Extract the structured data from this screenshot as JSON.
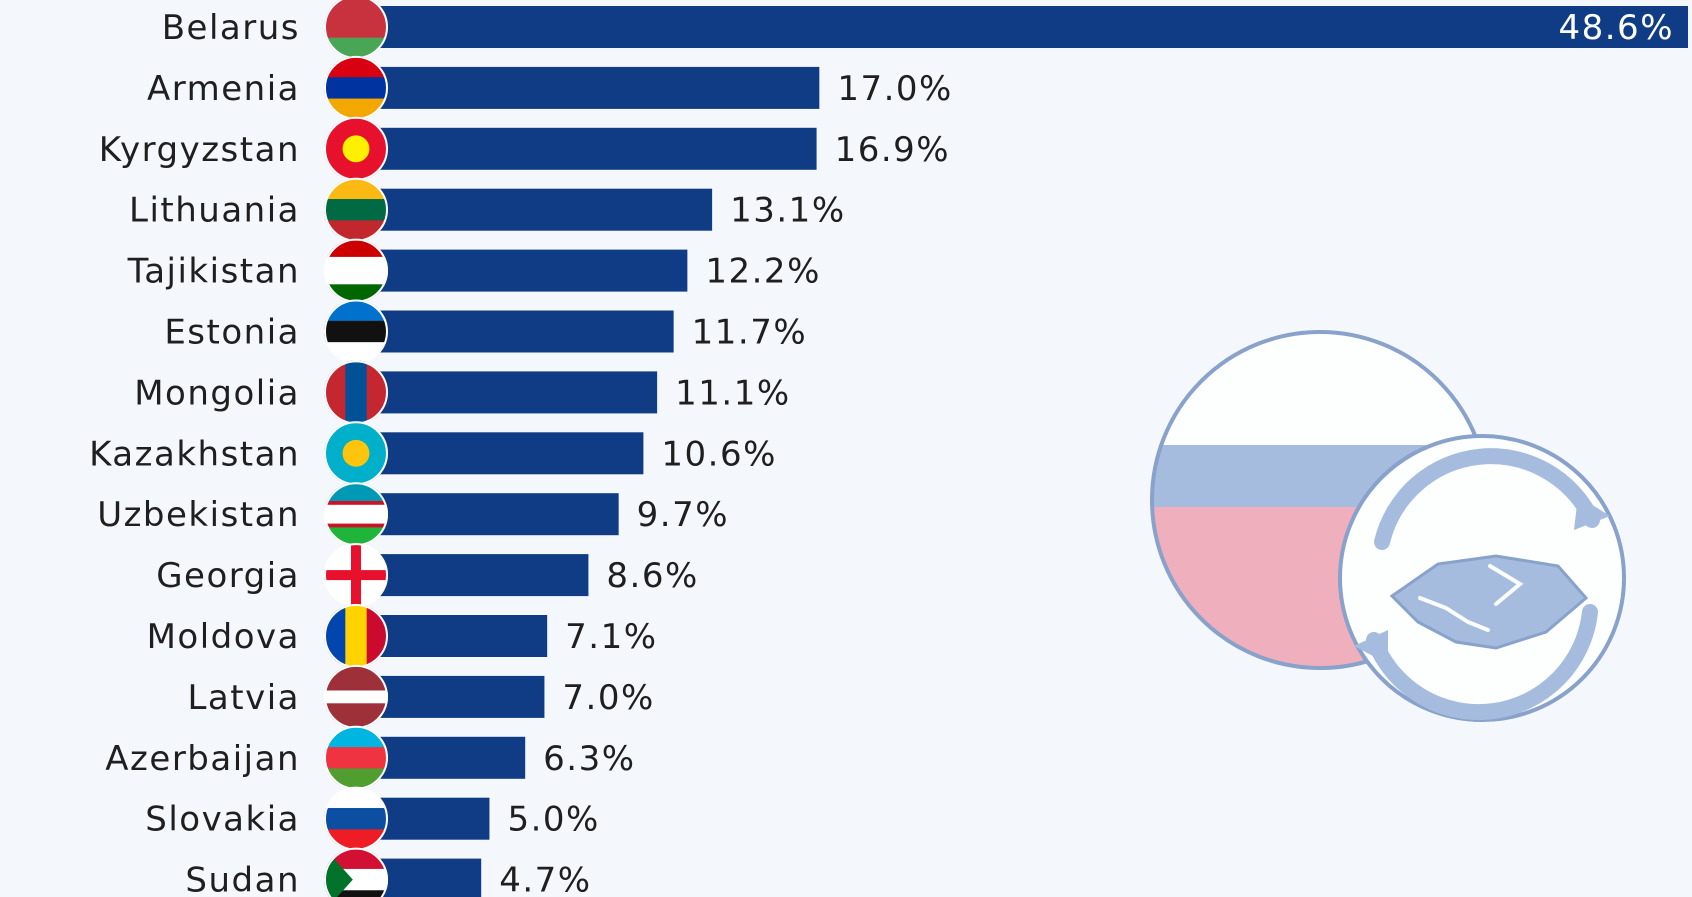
{
  "chart_data": {
    "type": "bar",
    "orientation": "horizontal",
    "categories": [
      "Belarus",
      "Armenia",
      "Kyrgyzstan",
      "Lithuania",
      "Tajikistan",
      "Estonia",
      "Mongolia",
      "Kazakhstan",
      "Uzbekistan",
      "Georgia",
      "Moldova",
      "Latvia",
      "Azerbaijan",
      "Slovakia",
      "Sudan"
    ],
    "values": [
      48.6,
      17.0,
      16.9,
      13.1,
      12.2,
      11.7,
      11.1,
      10.6,
      9.7,
      8.6,
      7.1,
      7.0,
      6.3,
      5.0,
      4.7
    ],
    "value_labels": [
      "48.6%",
      "17.0%",
      "16.9%",
      "13.1%",
      "12.2%",
      "11.7%",
      "11.1%",
      "10.6%",
      "9.7%",
      "8.6%",
      "7.1%",
      "7.0%",
      "6.3%",
      "5.0%",
      "4.7%"
    ],
    "xlim": [
      0,
      48.6
    ],
    "bar_color": "#0f3c85",
    "grid": false,
    "legend": "none",
    "flag_icons": [
      "belarus-flag-icon",
      "armenia-flag-icon",
      "kyrgyzstan-flag-icon",
      "lithuania-flag-icon",
      "tajikistan-flag-icon",
      "estonia-flag-icon",
      "mongolia-flag-icon",
      "kazakhstan-flag-icon",
      "uzbekistan-flag-icon",
      "georgia-flag-icon",
      "moldova-flag-icon",
      "latvia-flag-icon",
      "azerbaijan-flag-icon",
      "slovakia-flag-icon",
      "sudan-flag-icon"
    ]
  },
  "decoration": {
    "icon": "russia-trade-handshake-icon"
  }
}
